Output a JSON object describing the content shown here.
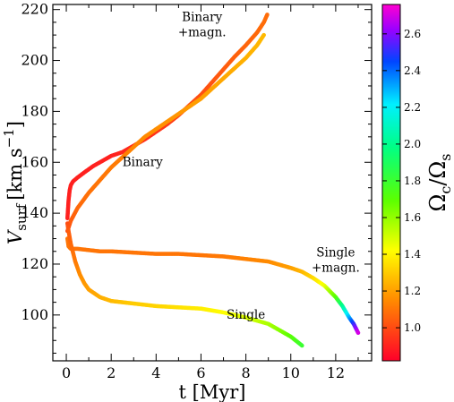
{
  "chart_data": {
    "type": "scatter",
    "xlabel": "t [Myr]",
    "ylabel": {
      "base": "V",
      "sub": "surf",
      "unit": "[km s",
      "exp": "−1",
      "close": "]"
    },
    "xlim": [
      -0.6,
      13.6
    ],
    "ylim": [
      82,
      222
    ],
    "xticks": [
      0,
      2,
      4,
      6,
      8,
      10,
      12
    ],
    "yticks": [
      100,
      120,
      140,
      160,
      180,
      200,
      220
    ],
    "colorbar": {
      "label": {
        "base": "Ω",
        "sub1": "c",
        "slash": "/Ω",
        "sub2": "s"
      },
      "range": [
        0.82,
        2.76
      ],
      "ticks": [
        "1.0",
        "1.2",
        "1.4",
        "1.6",
        "1.8",
        "2.0",
        "2.2",
        "2.4",
        "2.6"
      ],
      "colormap": "gist_rainbow (red → magenta)"
    },
    "annotations": [
      {
        "lines": [
          "Binary",
          "+magn."
        ],
        "x": 6.05,
        "y": 215.5
      },
      {
        "lines": [
          "Binary"
        ],
        "x": 3.4,
        "y": 158.5
      },
      {
        "lines": [
          "Single",
          "+magn."
        ],
        "x": 12.0,
        "y": 123
      },
      {
        "lines": [
          "Single"
        ],
        "x": 8.0,
        "y": 98.5
      }
    ],
    "series": [
      {
        "t": [
          0.05,
          0.1,
          0.15,
          0.2,
          0.3,
          0.5,
          0.8,
          1.2,
          1.6,
          2.0,
          2.5,
          3.0,
          3.5,
          4.0,
          4.5,
          5.0,
          5.5,
          6.0,
          6.5,
          7.0,
          7.5,
          8.0,
          8.5,
          8.8,
          8.95
        ],
        "v": [
          138,
          145,
          149,
          151,
          152.5,
          154,
          156,
          158.5,
          160.5,
          162.5,
          164,
          166.5,
          169,
          172,
          175,
          178.5,
          182.5,
          186.5,
          191.5,
          196.5,
          201.5,
          206,
          211,
          215,
          218
        ],
        "omega": [
          0.9,
          0.9,
          0.9,
          0.9,
          0.9,
          0.9,
          0.9,
          0.9,
          0.9,
          0.9,
          0.91,
          0.92,
          0.93,
          0.94,
          0.96,
          0.98,
          1.0,
          1.01,
          1.02,
          1.04,
          1.05,
          1.06,
          1.07,
          1.08,
          1.08
        ]
      },
      {
        "t": [
          0.05,
          0.2,
          0.5,
          1.0,
          1.5,
          2.0,
          2.5,
          3.0,
          3.5,
          4.0,
          4.5,
          5.0,
          5.5,
          6.0,
          6.5,
          7.0,
          7.5,
          8.0,
          8.5,
          8.8
        ],
        "v": [
          133,
          137,
          142,
          148,
          153,
          158,
          162,
          166,
          170,
          173,
          176,
          179,
          182,
          185,
          189,
          193,
          197,
          201,
          206,
          210
        ],
        "omega": [
          1.0,
          1.04,
          1.07,
          1.09,
          1.1,
          1.11,
          1.12,
          1.14,
          1.15,
          1.16,
          1.17,
          1.18,
          1.19,
          1.2,
          1.21,
          1.22,
          1.23,
          1.24,
          1.25,
          1.26
        ]
      },
      {
        "t": [
          0.05,
          0.1,
          0.2,
          0.5,
          1.0,
          1.5,
          2.0,
          3.0,
          4.0,
          5.0,
          6.0,
          7.0,
          8.0,
          9.0,
          10.0,
          10.5,
          11.0,
          11.5,
          12.0,
          12.3,
          12.6,
          12.8,
          13.0
        ],
        "v": [
          130,
          127,
          126,
          126,
          125.5,
          125,
          125,
          124.5,
          124,
          124,
          123.5,
          123,
          122,
          121,
          118.5,
          117,
          114.5,
          111.5,
          107,
          103.5,
          99,
          96.5,
          93
        ],
        "omega": [
          1.1,
          1.1,
          1.1,
          1.1,
          1.1,
          1.1,
          1.1,
          1.1,
          1.1,
          1.1,
          1.1,
          1.11,
          1.13,
          1.15,
          1.2,
          1.25,
          1.33,
          1.45,
          1.7,
          2.0,
          2.3,
          2.5,
          2.7
        ]
      },
      {
        "t": [
          0.05,
          0.1,
          0.2,
          0.4,
          0.6,
          0.8,
          1.0,
          1.5,
          2.0,
          2.5,
          3.0,
          4.0,
          5.0,
          6.0,
          7.0,
          8.0,
          9.0,
          9.5,
          10.0,
          10.5
        ],
        "v": [
          136,
          133,
          128,
          121,
          116,
          112.5,
          110,
          107,
          105.5,
          105,
          104.5,
          103.5,
          103,
          102.5,
          101,
          99,
          96.5,
          94,
          91.5,
          88
        ],
        "omega": [
          1.0,
          1.04,
          1.07,
          1.11,
          1.15,
          1.18,
          1.2,
          1.23,
          1.26,
          1.28,
          1.3,
          1.32,
          1.35,
          1.38,
          1.42,
          1.48,
          1.56,
          1.62,
          1.7,
          1.8
        ]
      }
    ]
  }
}
